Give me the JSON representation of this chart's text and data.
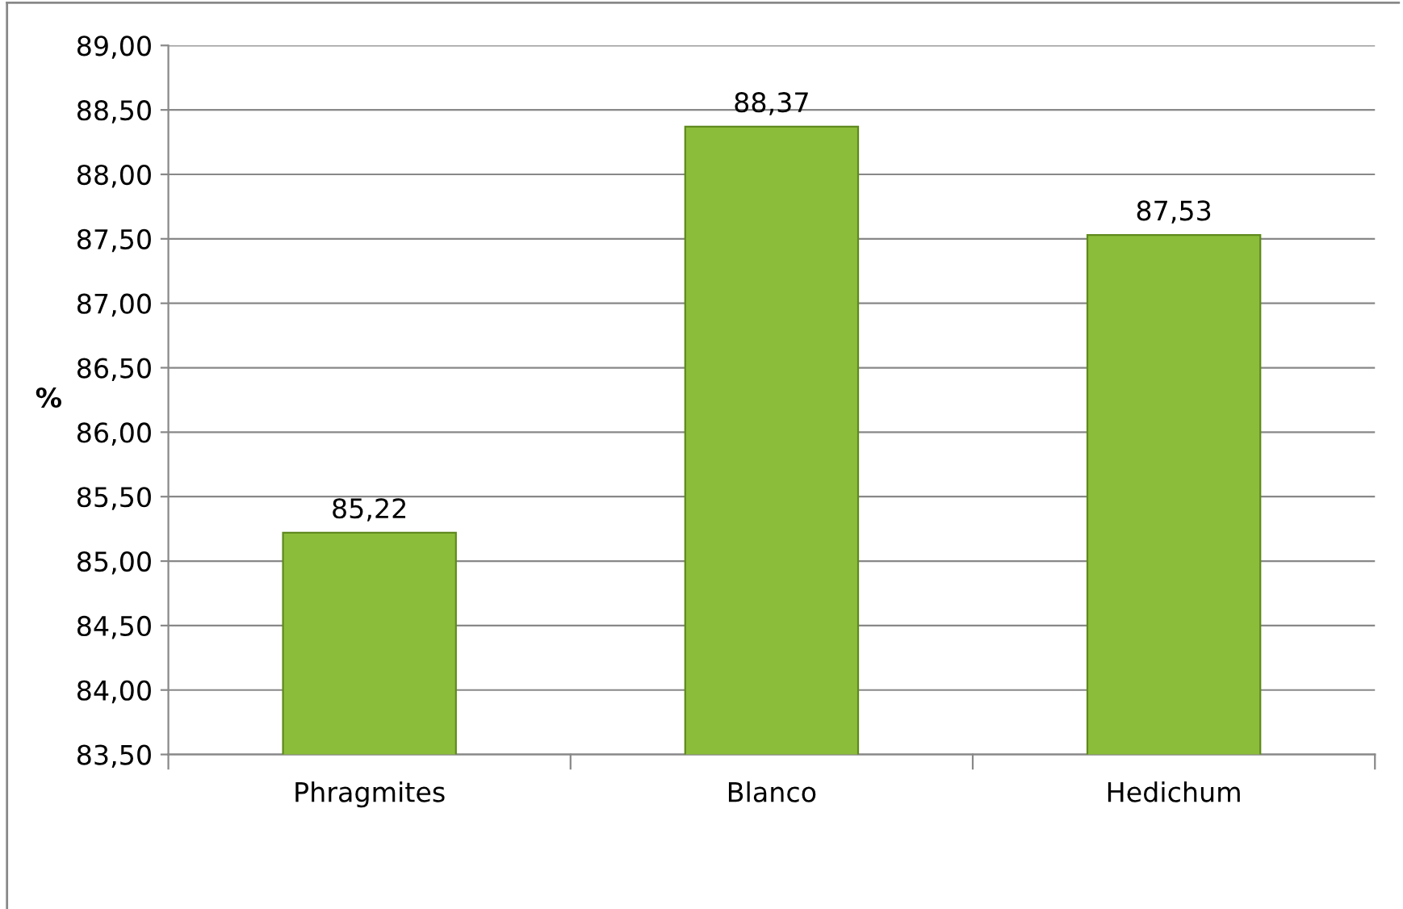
{
  "chart_data": {
    "type": "bar",
    "ylabel": "%",
    "categories": [
      "Phragmites",
      "Blanco",
      "Hedichum"
    ],
    "values": [
      85.22,
      88.37,
      87.53
    ],
    "value_labels": [
      "85,22",
      "88,37",
      "87,53"
    ],
    "color": "#8cbd3a",
    "ylim": [
      83.5,
      89
    ],
    "yticks": [
      {
        "value": 83.5,
        "label": "83,50"
      },
      {
        "value": 84,
        "label": "84,00"
      },
      {
        "value": 84.5,
        "label": "84,50"
      },
      {
        "value": 85,
        "label": "85,00"
      },
      {
        "value": 85.5,
        "label": "85,50"
      },
      {
        "value": 86,
        "label": "86,00"
      },
      {
        "value": 86.5,
        "label": "86,50"
      },
      {
        "value": 87,
        "label": "87,00"
      },
      {
        "value": 87.5,
        "label": "87,50"
      },
      {
        "value": 88,
        "label": "88,00"
      },
      {
        "value": 88.5,
        "label": "88,50"
      },
      {
        "value": 89,
        "label": "89,00"
      }
    ],
    "grid": "y"
  }
}
